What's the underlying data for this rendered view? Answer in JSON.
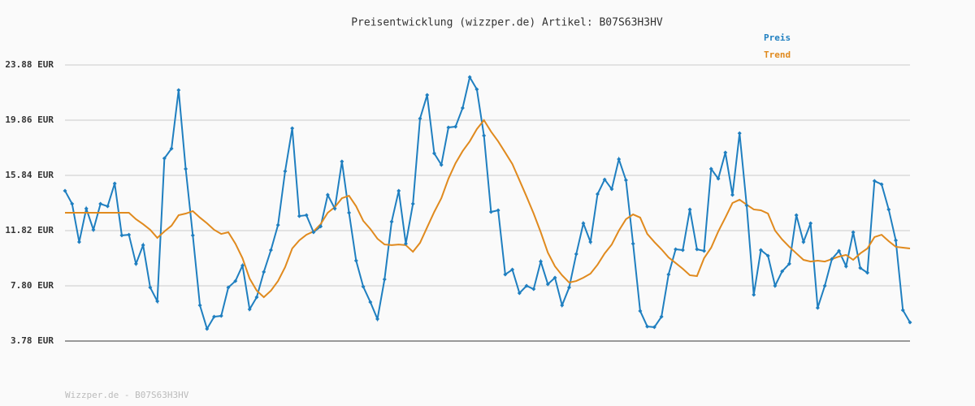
{
  "chart_data": {
    "type": "line",
    "title": "Preisentwicklung (wizzper.de) Artikel: B07S63H3HV",
    "footer": "Wizzper.de - B07S63H3HV",
    "categories": [
      null,
      null,
      null,
      null,
      null,
      null,
      null,
      null,
      null,
      null,
      null,
      null,
      null,
      null,
      null,
      null,
      null,
      null,
      null,
      null,
      null,
      null,
      null,
      null,
      null,
      null,
      null,
      null,
      null,
      null,
      null,
      null,
      null,
      null,
      null,
      null,
      null,
      null,
      null,
      null,
      null,
      null,
      null,
      null,
      null,
      null,
      null,
      null,
      null,
      null,
      null,
      null,
      null,
      null,
      null,
      null,
      null,
      null,
      null,
      null,
      null,
      null,
      null,
      null,
      null,
      null,
      null,
      null,
      null,
      null,
      null,
      null,
      null,
      null,
      null,
      null,
      null,
      null,
      null,
      null,
      null,
      null,
      null,
      null,
      null,
      null,
      null,
      null,
      null,
      null,
      null,
      null,
      null,
      null,
      null,
      null,
      null,
      null,
      null,
      null,
      null,
      null,
      null,
      null,
      null,
      null,
      null,
      null,
      null,
      null,
      null,
      null,
      null,
      null,
      null,
      null,
      null,
      null,
      null,
      null
    ],
    "series": [
      {
        "name": "Preis",
        "color": "#1f7fc0",
        "markers": true,
        "values": [
          14.72,
          13.77,
          10.99,
          13.42,
          11.88,
          13.77,
          13.59,
          15.25,
          11.47,
          11.52,
          9.4,
          10.76,
          7.68,
          6.68,
          17.08,
          17.79,
          22.05,
          16.31,
          11.47,
          6.38,
          4.67,
          5.55,
          5.61,
          7.68,
          8.15,
          9.28,
          6.09,
          6.97,
          8.81,
          10.4,
          12.23,
          16.14,
          19.27,
          12.88,
          12.94,
          11.7,
          12.12,
          14.42,
          13.42,
          16.85,
          13.12,
          9.63,
          7.74,
          6.62,
          5.38,
          8.27,
          12.47,
          14.72,
          10.87,
          13.77,
          19.98,
          21.69,
          17.44,
          16.61,
          19.33,
          19.39,
          20.75,
          22.99,
          22.11,
          18.74,
          13.18,
          13.3,
          8.63,
          8.98,
          7.27,
          7.8,
          7.56,
          9.57,
          7.92,
          8.39,
          6.38,
          7.68,
          10.11,
          12.35,
          10.99,
          14.48,
          15.54,
          14.84,
          17.02,
          15.49,
          10.87,
          5.97,
          4.84,
          4.79,
          5.55,
          8.63,
          10.46,
          10.4,
          13.36,
          10.46,
          10.34,
          16.31,
          15.6,
          17.5,
          14.42,
          18.91,
          13.65,
          7.15,
          10.4,
          9.99,
          7.8,
          8.86,
          9.4,
          12.94,
          10.99,
          12.35,
          6.2,
          7.8,
          9.75,
          10.34,
          9.22,
          11.7,
          9.1,
          8.75,
          15.43,
          15.19,
          13.36,
          11.11,
          6.03,
          5.14
        ]
      },
      {
        "name": "Trend",
        "color": "#e08a1e",
        "markers": false,
        "values": [
          13.12,
          13.12,
          13.12,
          13.12,
          13.12,
          13.12,
          13.12,
          13.12,
          13.12,
          13.12,
          12.65,
          12.29,
          11.88,
          11.29,
          11.76,
          12.18,
          12.94,
          13.06,
          13.24,
          12.77,
          12.35,
          11.88,
          11.58,
          11.7,
          10.87,
          9.81,
          8.33,
          7.45,
          6.97,
          7.45,
          8.15,
          9.16,
          10.52,
          11.11,
          11.52,
          11.76,
          12.29,
          13.12,
          13.53,
          14.18,
          14.36,
          13.59,
          12.53,
          11.94,
          11.23,
          10.81,
          10.76,
          10.81,
          10.76,
          10.28,
          10.93,
          12.06,
          13.18,
          14.18,
          15.6,
          16.73,
          17.61,
          18.32,
          19.21,
          19.86,
          19.03,
          18.32,
          17.5,
          16.67,
          15.49,
          14.3,
          13.06,
          11.7,
          10.22,
          9.22,
          8.57,
          8.04,
          8.15,
          8.39,
          8.69,
          9.34,
          10.16,
          10.81,
          11.82,
          12.65,
          13.0,
          12.77,
          11.58,
          10.99,
          10.46,
          9.87,
          9.46,
          9.04,
          8.57,
          8.51,
          9.81,
          10.58,
          11.76,
          12.77,
          13.83,
          14.07,
          13.71,
          13.36,
          13.3,
          13.06,
          11.82,
          11.17,
          10.64,
          10.16,
          9.69,
          9.57,
          9.63,
          9.57,
          9.75,
          9.93,
          10.05,
          9.69,
          10.16,
          10.52,
          11.35,
          11.52,
          11.05,
          10.64,
          10.58,
          10.52
        ]
      }
    ],
    "ylim": [
      3.78,
      23.88
    ],
    "yticks": [
      {
        "value": 3.78,
        "label": "3.78 EUR"
      },
      {
        "value": 7.8,
        "label": "7.80 EUR"
      },
      {
        "value": 11.82,
        "label": "11.82 EUR"
      },
      {
        "value": 15.84,
        "label": "15.84 EUR"
      },
      {
        "value": 19.86,
        "label": "19.86 EUR"
      },
      {
        "value": 23.88,
        "label": "23.88 EUR"
      }
    ],
    "grid": true,
    "legend": "top-right"
  }
}
